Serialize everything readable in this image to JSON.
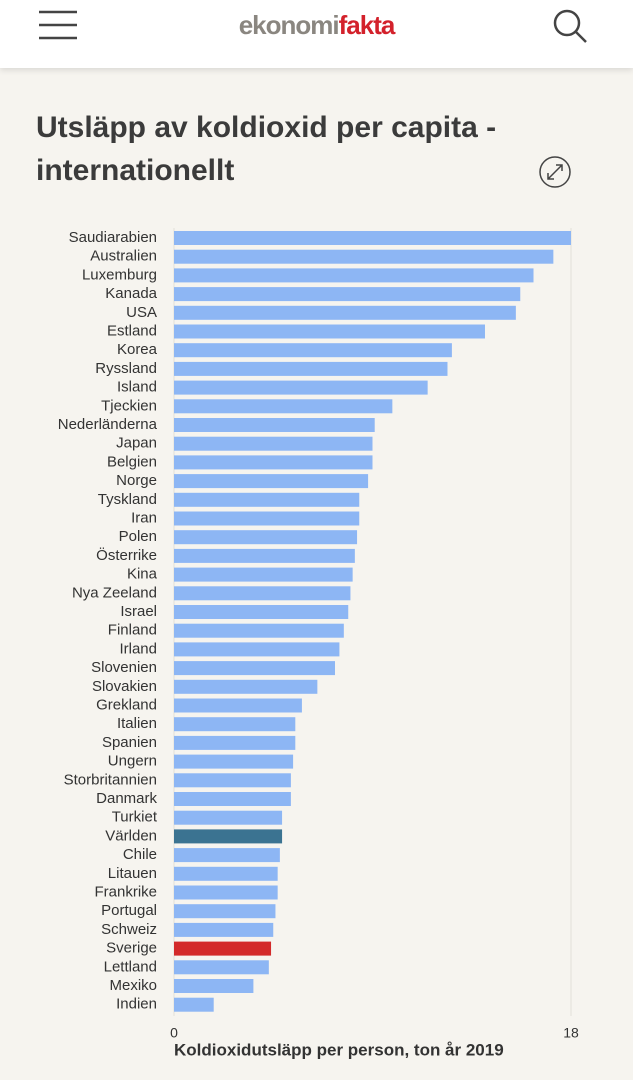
{
  "header": {
    "logo": [
      "ekonomi",
      "fakta"
    ]
  },
  "chart_data": {
    "type": "bar",
    "orientation": "horizontal",
    "title": "Utsläpp av koldioxid per capita - internationellt",
    "x_label": "Koldioxidutsläpp per person, ton år 2019",
    "categories": [
      "Saudiarabien",
      "Australien",
      "Luxemburg",
      "Kanada",
      "USA",
      "Estland",
      "Korea",
      "Ryssland",
      "Island",
      "Tjeckien",
      "Nederländerna",
      "Japan",
      "Belgien",
      "Norge",
      "Tyskland",
      "Iran",
      "Polen",
      "Österrike",
      "Kina",
      "Nya Zeeland",
      "Israel",
      "Finland",
      "Irland",
      "Slovenien",
      "Slovakien",
      "Grekland",
      "Italien",
      "Spanien",
      "Ungern",
      "Storbritannien",
      "Danmark",
      "Turkiet",
      "Världen",
      "Chile",
      "Litauen",
      "Frankrike",
      "Portugal",
      "Schweiz",
      "Sverige",
      "Lettland",
      "Mexiko",
      "Indien"
    ],
    "values": [
      18.0,
      17.2,
      16.3,
      15.7,
      15.5,
      14.1,
      12.6,
      12.4,
      11.5,
      9.9,
      9.1,
      9.0,
      9.0,
      8.8,
      8.4,
      8.4,
      8.3,
      8.2,
      8.1,
      8.0,
      7.9,
      7.7,
      7.5,
      7.3,
      6.5,
      5.8,
      5.5,
      5.5,
      5.4,
      5.3,
      5.3,
      4.9,
      4.9,
      4.8,
      4.7,
      4.7,
      4.6,
      4.5,
      4.4,
      4.3,
      3.6,
      1.8
    ],
    "color": "#8db6f4",
    "colors": [
      "#8db6f4",
      "#8db6f4",
      "#8db6f4",
      "#8db6f4",
      "#8db6f4",
      "#8db6f4",
      "#8db6f4",
      "#8db6f4",
      "#8db6f4",
      "#8db6f4",
      "#8db6f4",
      "#8db6f4",
      "#8db6f4",
      "#8db6f4",
      "#8db6f4",
      "#8db6f4",
      "#8db6f4",
      "#8db6f4",
      "#8db6f4",
      "#8db6f4",
      "#8db6f4",
      "#8db6f4",
      "#8db6f4",
      "#8db6f4",
      "#8db6f4",
      "#8db6f4",
      "#8db6f4",
      "#8db6f4",
      "#8db6f4",
      "#8db6f4",
      "#8db6f4",
      "#8db6f4",
      "#3b7391",
      "#8db6f4",
      "#8db6f4",
      "#8db6f4",
      "#8db6f4",
      "#8db6f4",
      "#d32a2a",
      "#8db6f4",
      "#8db6f4",
      "#8db6f4"
    ],
    "xlim": [
      0,
      18
    ],
    "xticks": [
      0,
      18
    ],
    "grid": true
  }
}
